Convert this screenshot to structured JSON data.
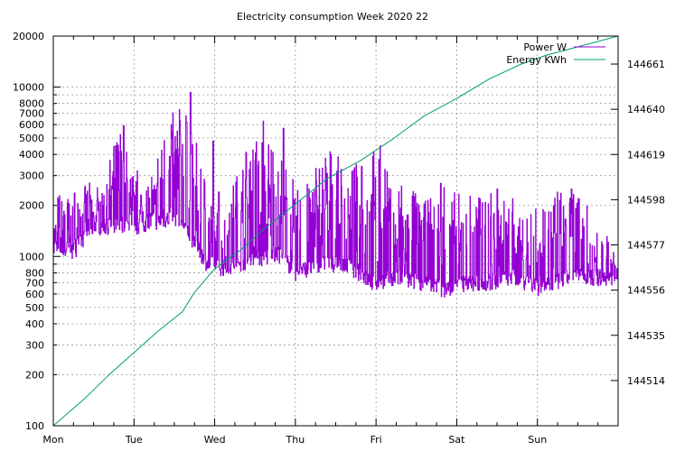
{
  "chart_data": {
    "type": "line",
    "title": "Electricity consumption Week 2020 22",
    "x_categories": [
      "Mon",
      "Tue",
      "Wed",
      "Thu",
      "Fri",
      "Sat",
      "Sun"
    ],
    "y_left": {
      "scale": "log",
      "range": [
        100,
        20000
      ],
      "major_ticks": [
        100,
        1000,
        10000
      ],
      "tick_labels": [
        "100",
        "200",
        "300",
        "400",
        "500",
        "600",
        "700",
        "800",
        "1000",
        "2000",
        "3000",
        "4000",
        "5000",
        "6000",
        "7000",
        "8000",
        "10000",
        "20000"
      ],
      "tick_values": [
        100,
        200,
        300,
        400,
        500,
        600,
        700,
        800,
        1000,
        2000,
        3000,
        4000,
        5000,
        6000,
        7000,
        8000,
        10000,
        20000
      ]
    },
    "y_right": {
      "scale": "linear",
      "range": [
        144493,
        144674
      ],
      "tick_values": [
        144514,
        144535,
        144556,
        144577,
        144598,
        144619,
        144640,
        144661
      ],
      "tick_labels": [
        "144514",
        "144535",
        "144556",
        "144577",
        "144598",
        "144619",
        "144640",
        "144661"
      ]
    },
    "grid": true,
    "legend_position": "top-right",
    "series": [
      {
        "name": "Power W",
        "axis": "left",
        "color": "#9400d3",
        "profile": [
          [
            0.0,
            1050,
            2300
          ],
          [
            0.25,
            1000,
            2400
          ],
          [
            0.5,
            1400,
            2800
          ],
          [
            0.6,
            1400,
            2600
          ],
          [
            0.85,
            1450,
            5800
          ],
          [
            1.0,
            1400,
            2800
          ],
          [
            1.25,
            1500,
            3200
          ],
          [
            1.55,
            1600,
            8500
          ],
          [
            1.75,
            1100,
            5000
          ],
          [
            1.9,
            850,
            2600
          ],
          [
            2.1,
            800,
            1600
          ],
          [
            2.5,
            900,
            5500
          ],
          [
            2.8,
            950,
            4200
          ],
          [
            3.0,
            750,
            2600
          ],
          [
            3.4,
            850,
            4300
          ],
          [
            3.7,
            800,
            3300
          ],
          [
            3.95,
            650,
            4300
          ],
          [
            4.2,
            700,
            3000
          ],
          [
            4.6,
            650,
            2200
          ],
          [
            4.85,
            600,
            2600
          ],
          [
            5.1,
            650,
            2300
          ],
          [
            5.4,
            650,
            2500
          ],
          [
            5.7,
            700,
            2200
          ],
          [
            5.9,
            650,
            2100
          ],
          [
            6.05,
            600,
            2400
          ],
          [
            6.4,
            700,
            2400
          ],
          [
            6.6,
            700,
            2300
          ],
          [
            7.0,
            700,
            1000
          ]
        ],
        "peaks": [
          [
            0.87,
            5900
          ],
          [
            1.04,
            3200
          ],
          [
            1.7,
            9300
          ],
          [
            1.65,
            6200
          ],
          [
            1.98,
            4800
          ],
          [
            2.05,
            2400
          ],
          [
            2.6,
            6300
          ],
          [
            2.85,
            5700
          ],
          [
            3.37,
            3800
          ],
          [
            3.82,
            3400
          ],
          [
            4.05,
            4500
          ],
          [
            4.8,
            2700
          ],
          [
            5.5,
            2500
          ],
          [
            6.42,
            2500
          ]
        ]
      },
      {
        "name": "Energy KWh",
        "axis": "right",
        "color": "#009e73",
        "points": [
          [
            0.0,
            144493
          ],
          [
            0.4,
            144506
          ],
          [
            0.7,
            144517
          ],
          [
            1.0,
            144527
          ],
          [
            1.3,
            144537
          ],
          [
            1.6,
            144546
          ],
          [
            1.7,
            144552
          ],
          [
            1.75,
            144555
          ],
          [
            2.0,
            144566
          ],
          [
            2.3,
            144574
          ],
          [
            2.6,
            144584
          ],
          [
            3.0,
            144596
          ],
          [
            3.4,
            144608
          ],
          [
            3.8,
            144616
          ],
          [
            4.2,
            144626
          ],
          [
            4.6,
            144637
          ],
          [
            5.0,
            144645
          ],
          [
            5.4,
            144654
          ],
          [
            5.8,
            144661
          ],
          [
            6.1,
            144665
          ],
          [
            6.5,
            144669
          ],
          [
            7.0,
            144674
          ]
        ]
      }
    ]
  }
}
